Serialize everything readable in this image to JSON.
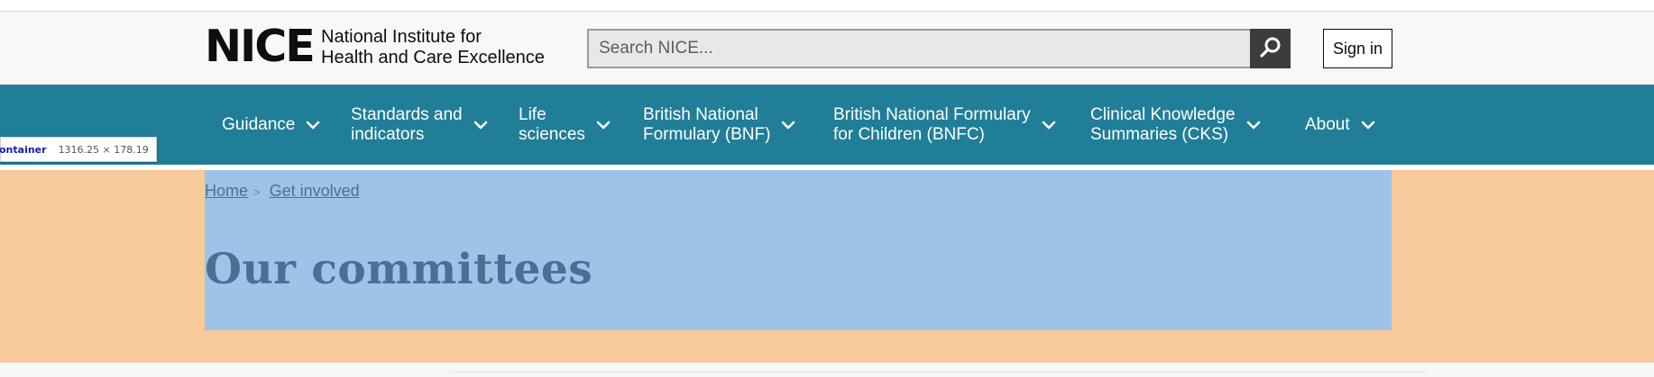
{
  "header": {
    "logo_mark": "NICE",
    "logo_line1": "National Institute for",
    "logo_line2": "Health and Care Excellence",
    "search_placeholder": "Search NICE...",
    "signin_label": "Sign in"
  },
  "nav": {
    "items": [
      {
        "line1": "Guidance",
        "line2": ""
      },
      {
        "line1": "Standards and",
        "line2": "indicators"
      },
      {
        "line1": "Life",
        "line2": "sciences"
      },
      {
        "line1": "British National",
        "line2": "Formulary (BNF)"
      },
      {
        "line1": "British National Formulary",
        "line2": "for Children (BNFC)"
      },
      {
        "line1": "Clinical Knowledge",
        "line2": "Summaries (CKS)"
      },
      {
        "line1": "About",
        "line2": ""
      }
    ]
  },
  "breadcrumb": {
    "items": [
      "Home",
      "Get involved"
    ],
    "separator": ">"
  },
  "page": {
    "title": "Our committees"
  },
  "devtools": {
    "element_name": "ontainer",
    "dimensions": "1316.25 × 178.19"
  },
  "colors": {
    "nav_background": "#217e98",
    "hero_background": "#f7c99b",
    "highlight_overlay": "#9fc2e7",
    "search_button": "#3c3c3c"
  },
  "icons": {
    "search": "magnifier-icon",
    "nav_chevron": "chevron-down-icon"
  }
}
